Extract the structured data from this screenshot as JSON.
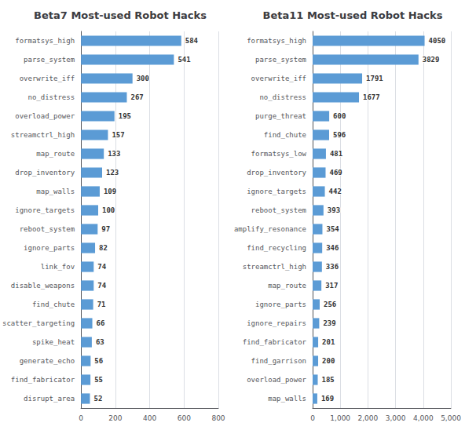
{
  "chart_data": [
    {
      "type": "bar",
      "title": "Beta7 Most-used Robot Hacks",
      "orientation": "horizontal",
      "categories": [
        "formatsys_high",
        "parse_system",
        "overwrite_iff",
        "no_distress",
        "overload_power",
        "streamctrl_high",
        "map_route",
        "drop_inventory",
        "map_walls",
        "ignore_targets",
        "reboot_system",
        "ignore_parts",
        "link_fov",
        "disable_weapons",
        "find_chute",
        "scatter_targeting",
        "spike_heat",
        "generate_echo",
        "find_fabricator",
        "disrupt_area"
      ],
      "values": [
        584,
        541,
        300,
        267,
        195,
        157,
        133,
        123,
        109,
        100,
        97,
        82,
        74,
        74,
        71,
        66,
        63,
        56,
        55,
        52
      ],
      "color": "#5b9bd5",
      "xlim": [
        0,
        800
      ],
      "xticks": [
        0,
        200,
        400,
        600,
        800
      ],
      "grid": true,
      "data_labels": true
    },
    {
      "type": "bar",
      "title": "Beta11 Most-used Robot Hacks",
      "orientation": "horizontal",
      "categories": [
        "formatsys_high",
        "parse_system",
        "overwrite_iff",
        "no_distress",
        "purge_threat",
        "find_chute",
        "formatsys_low",
        "drop_inventory",
        "ignore_targets",
        "reboot_system",
        "amplify_resonance",
        "find_recycling",
        "streamctrl_high",
        "map_route",
        "ignore_parts",
        "ignore_repairs",
        "find_fabricator",
        "find_garrison",
        "overload_power",
        "map_walls"
      ],
      "values": [
        4050,
        3829,
        1791,
        1677,
        600,
        596,
        481,
        469,
        442,
        393,
        354,
        346,
        336,
        317,
        256,
        239,
        201,
        200,
        185,
        169
      ],
      "color": "#5b9bd5",
      "xlim": [
        0,
        5000
      ],
      "xticks": [
        0,
        1000,
        2000,
        3000,
        4000,
        5000
      ],
      "grid": true,
      "data_labels": true
    }
  ]
}
